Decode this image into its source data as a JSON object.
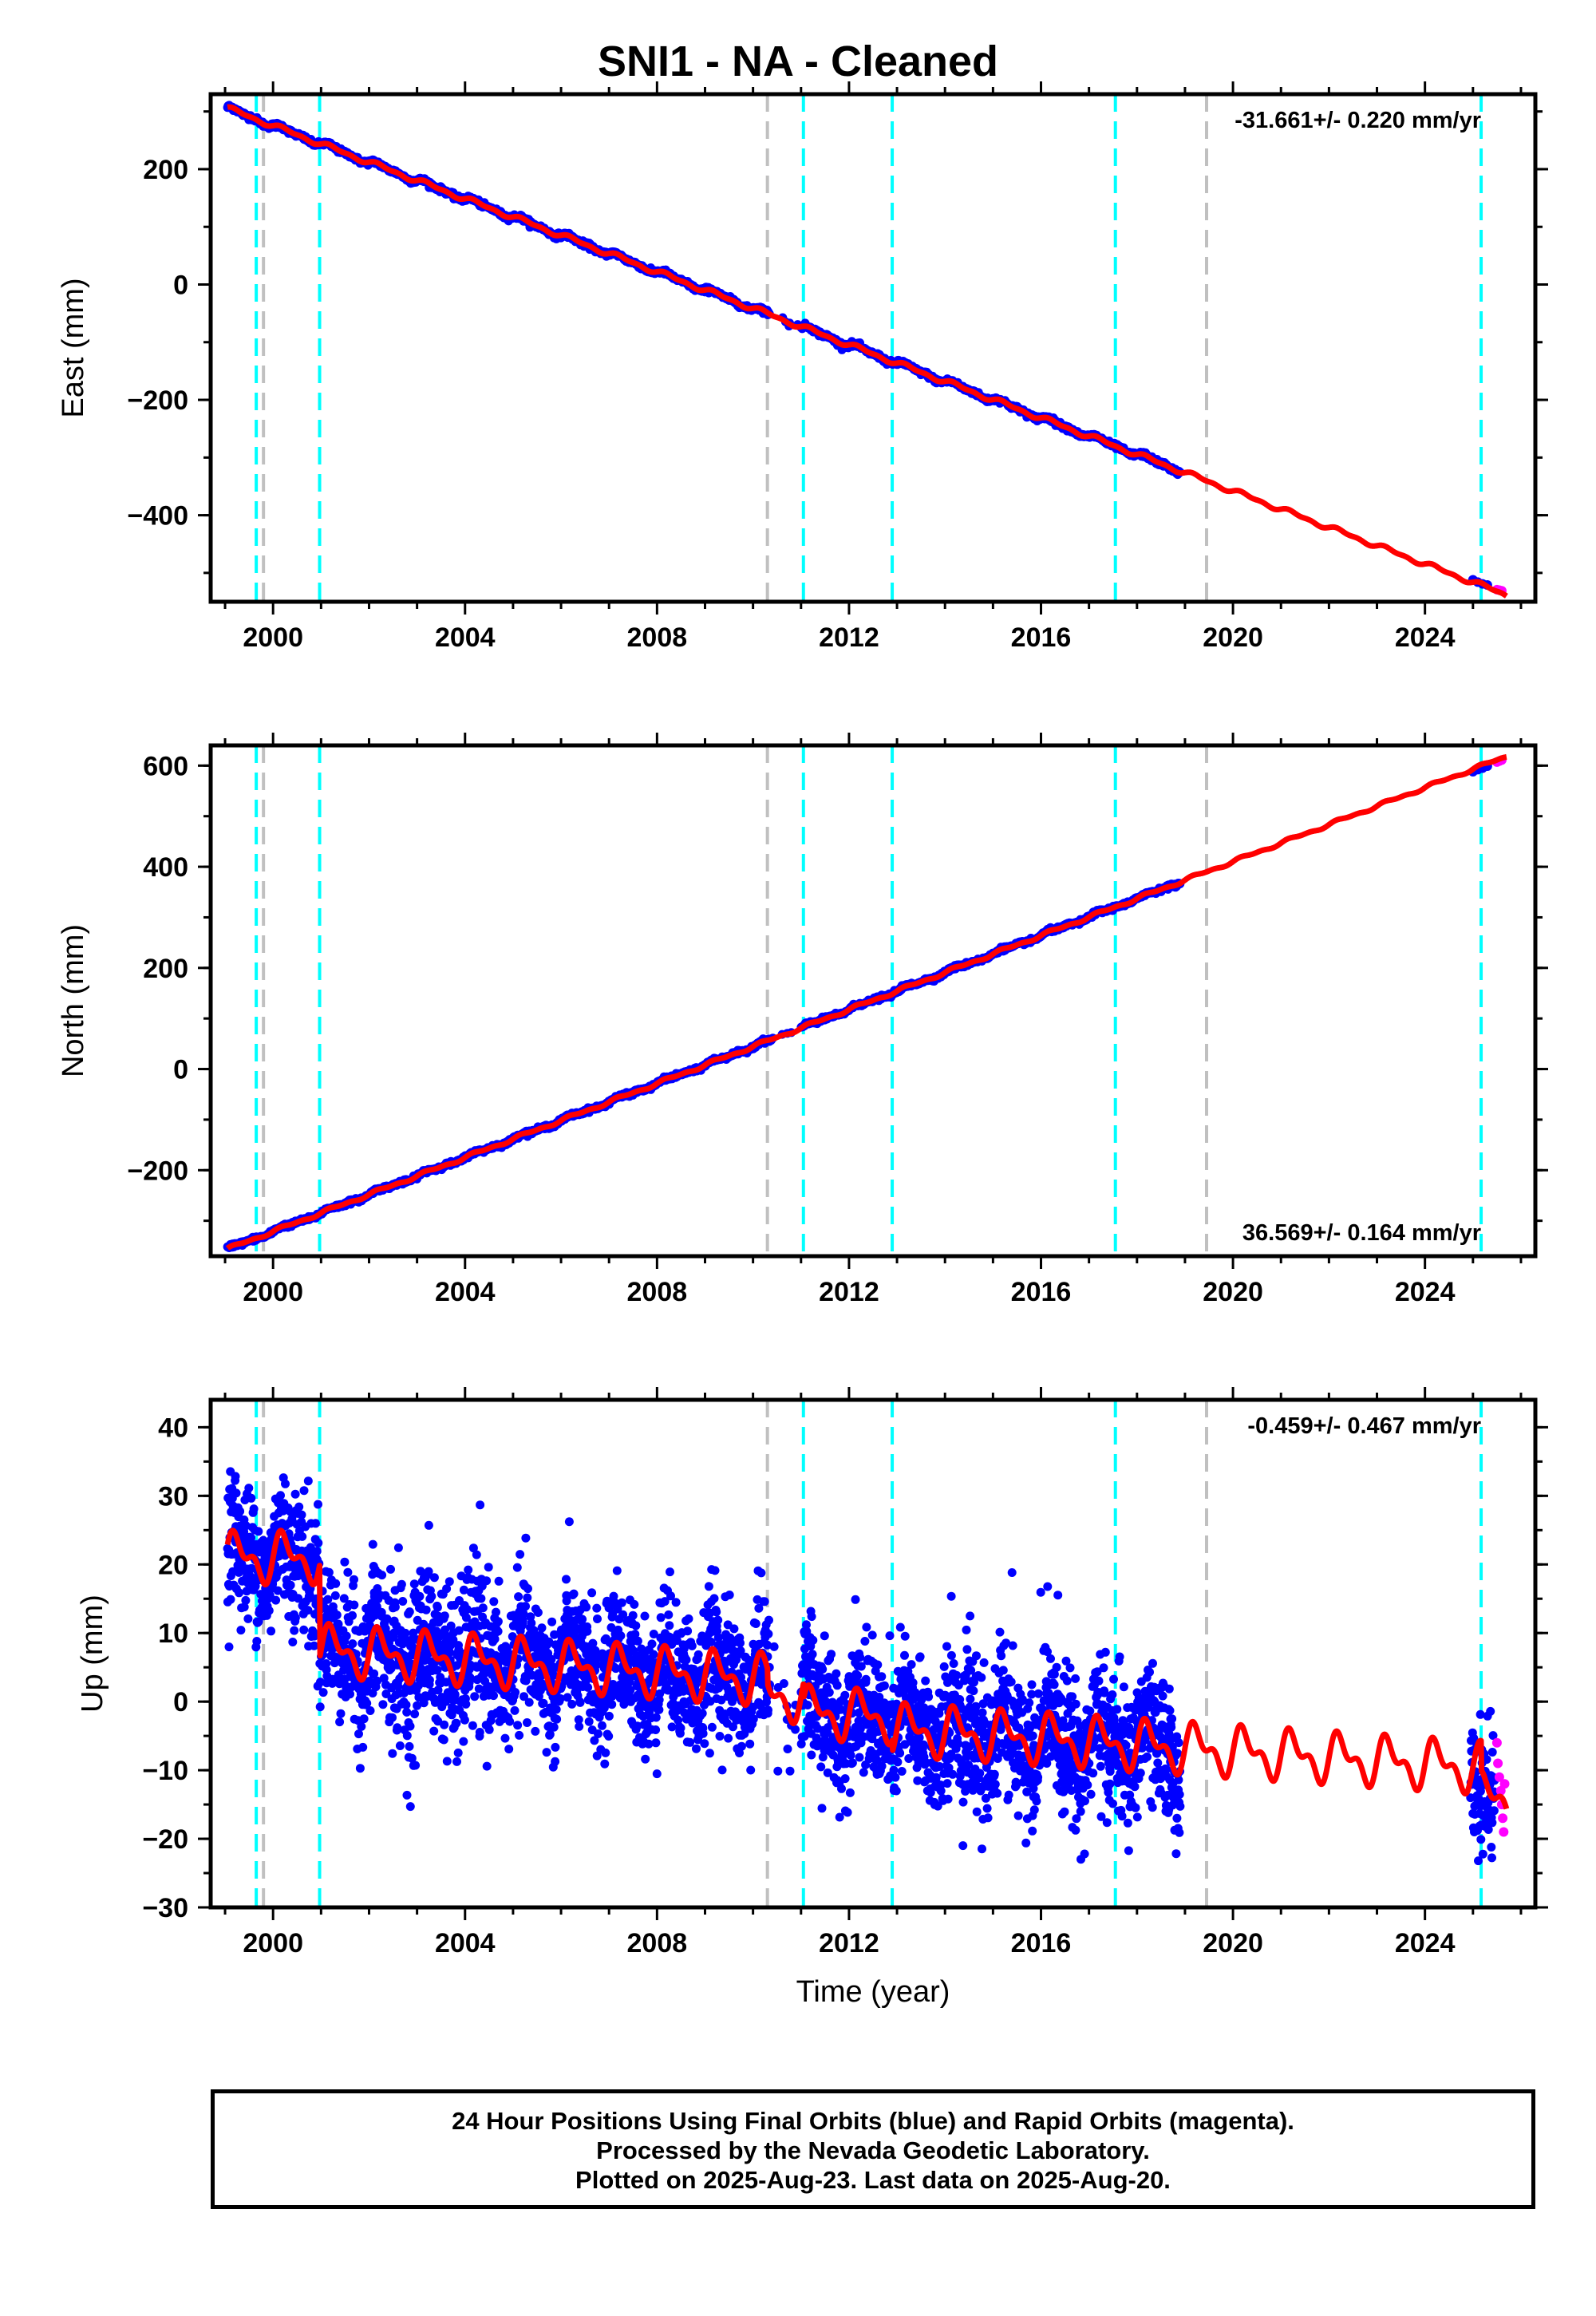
{
  "title": "SNI1  - NA - Cleaned",
  "footer": {
    "line1": "24 Hour Positions Using Final Orbits (blue) and Rapid Orbits (magenta).",
    "line2": "Processed by the Nevada Geodetic Laboratory.",
    "line3": "Plotted on 2025-Aug-23. Last data on 2025-Aug-20."
  },
  "colors": {
    "final_orbits": "#0000ff",
    "rapid_orbits": "#ff00ff",
    "model_fit": "#ff0000",
    "event_equipment": "#00ffff",
    "event_other": "#c0c0c0"
  },
  "chart_data": [
    {
      "type": "scatter",
      "ylabel": "East (mm)",
      "xlabel": "",
      "xlim": [
        1998.7,
        2026.3
      ],
      "ylim": [
        -550,
        330
      ],
      "xticks": [
        2000,
        2004,
        2008,
        2012,
        2016,
        2020,
        2024
      ],
      "yticks": [
        -400,
        -200,
        0,
        200
      ],
      "annotation": "-31.661+/- 0.220 mm/yr",
      "annotation_position": "top-right",
      "trend": {
        "rate": -31.661,
        "value_2000": 275.4,
        "annual_amplitude": 4
      },
      "final_data": {
        "start": 1999.05,
        "end": 2018.9,
        "scatter_sd": 2.2,
        "extra": [
          [
            2025.0,
            -512
          ],
          [
            2025.1,
            -516
          ],
          [
            2025.2,
            -519
          ],
          [
            2025.3,
            -521
          ]
        ]
      },
      "rapid_data": [
        [
          2025.5,
          -529
        ],
        [
          2025.55,
          -530
        ],
        [
          2025.6,
          -531
        ]
      ],
      "events_equipment": [
        1999.65,
        2000.97,
        2011.05,
        2012.9,
        2017.55,
        2025.17
      ],
      "events_other": [
        1999.8,
        2010.3,
        2019.45
      ]
    },
    {
      "type": "scatter",
      "ylabel": "North (mm)",
      "xlabel": "",
      "xlim": [
        1998.7,
        2026.3
      ],
      "ylim": [
        -370,
        640
      ],
      "xticks": [
        2000,
        2004,
        2008,
        2012,
        2016,
        2020,
        2024
      ],
      "yticks": [
        -200,
        0,
        200,
        400,
        600
      ],
      "annotation": "36.569+/- 0.164 mm/yr",
      "annotation_position": "bottom-right",
      "trend": {
        "rate": 36.569,
        "value_2000": -321.2,
        "annual_amplitude": 3
      },
      "final_data": {
        "start": 1999.05,
        "end": 2018.9,
        "scatter_sd": 2.0,
        "extra": [
          [
            2025.0,
            588
          ],
          [
            2025.1,
            592
          ],
          [
            2025.2,
            595
          ],
          [
            2025.3,
            599
          ]
        ]
      },
      "rapid_data": [
        [
          2025.5,
          607
        ],
        [
          2025.55,
          609
        ],
        [
          2025.6,
          611
        ]
      ],
      "events_equipment": [
        1999.65,
        2000.97,
        2011.05,
        2012.9,
        2017.55,
        2025.17
      ],
      "events_other": [
        1999.8,
        2010.3,
        2019.45
      ]
    },
    {
      "type": "scatter",
      "ylabel": "Up (mm)",
      "xlabel": "Time (year)",
      "xlim": [
        1998.7,
        2026.3
      ],
      "ylim": [
        -30,
        44
      ],
      "xticks": [
        2000,
        2004,
        2008,
        2012,
        2016,
        2020,
        2024
      ],
      "yticks": [
        -30,
        -20,
        -10,
        0,
        10,
        20,
        30,
        40
      ],
      "annotation": "-0.459+/- 0.467 mm/yr",
      "annotation_position": "top-right",
      "segments_fit": [
        {
          "from": 1999.0,
          "to": 2000.97,
          "offset": 21.0,
          "rate": 0
        },
        {
          "from": 2000.97,
          "to": 2010.3,
          "offset": 7.5,
          "rate": -0.459
        },
        {
          "from": 2010.3,
          "to": 2011.05,
          "offset": 1.0,
          "rate": -0.459
        },
        {
          "from": 2011.05,
          "to": 2012.9,
          "offset": -1.5,
          "rate": -0.459
        },
        {
          "from": 2012.9,
          "to": 2025.17,
          "offset": -4.0,
          "rate": -0.459
        },
        {
          "from": 2025.17,
          "to": 2025.7,
          "offset": -14.0,
          "rate": 0
        }
      ],
      "annual_amplitude": 3.5,
      "final_data": {
        "start": 1999.05,
        "end": 2018.9,
        "scatter_sd": 4.8,
        "extra_start": 2024.95,
        "extra_end": 2025.45
      },
      "rapid_data": [
        [
          2025.5,
          -6
        ],
        [
          2025.52,
          -9
        ],
        [
          2025.55,
          -11
        ],
        [
          2025.58,
          -13
        ],
        [
          2025.6,
          -15
        ],
        [
          2025.62,
          -17
        ],
        [
          2025.64,
          -19
        ],
        [
          2025.66,
          -12
        ]
      ],
      "events_equipment": [
        1999.65,
        2000.97,
        2011.05,
        2012.9,
        2017.55,
        2025.17
      ],
      "events_other": [
        1999.8,
        2010.3,
        2019.45
      ]
    }
  ]
}
